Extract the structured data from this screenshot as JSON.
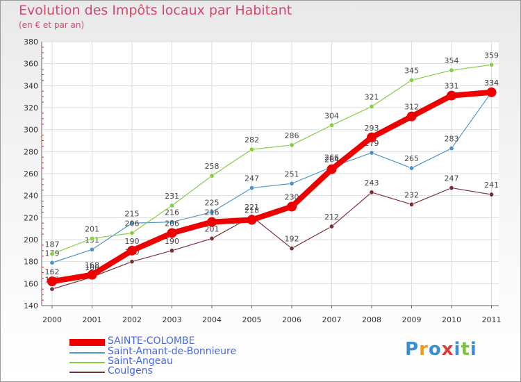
{
  "title": "Evolution des Impôts locaux par Habitant",
  "subtitle": "(en € et par an)",
  "logo": {
    "text": "Proxiti",
    "letters": [
      "P",
      "r",
      "o",
      "x",
      "i",
      "t",
      "i"
    ],
    "colors": [
      "#3a8fd0",
      "#f39c12",
      "#3a8fd0",
      "#e23b3b",
      "#3a8fd0",
      "#7cc242",
      "#3a8fd0"
    ]
  },
  "chart_data": {
    "type": "line",
    "title": "Evolution des Impôts locaux par Habitant",
    "subtitle": "(en € et par an)",
    "xlabel": "",
    "ylabel": "",
    "ylim": [
      140,
      380
    ],
    "yticks": [
      "140",
      "160",
      "180",
      "200",
      "220",
      "240",
      "260",
      "280",
      "300",
      "320",
      "340",
      "360",
      "380"
    ],
    "categories": [
      "2000",
      "2001",
      "2002",
      "2003",
      "2004",
      "2005",
      "2006",
      "2007",
      "2008",
      "2009",
      "2010",
      "2011"
    ],
    "series": [
      {
        "name": "Coulgens",
        "color": "#7a2f35",
        "labels": true,
        "values": [
          155,
          166,
          180,
          190,
          201,
          221,
          192,
          212,
          243,
          232,
          247,
          241
        ]
      },
      {
        "name": "Saint-Amant-de-Bonnieure",
        "color": "#4f93cc",
        "labels": true,
        "values": [
          179,
          191,
          215,
          216,
          225,
          247,
          251,
          266,
          279,
          265,
          283,
          334
        ]
      },
      {
        "name": "Saint-Angeau",
        "color": "#88cc44",
        "labels": true,
        "values": [
          187,
          201,
          206,
          231,
          258,
          282,
          286,
          304,
          321,
          345,
          354,
          359
        ]
      },
      {
        "name": "SAINTE-COLOMBE",
        "color": "#ee0000",
        "labels": true,
        "values": [
          162,
          168,
          190,
          206,
          216,
          218,
          230,
          264,
          293,
          312,
          331,
          334
        ]
      }
    ],
    "legend_order": [
      "SAINTE-COLOMBE",
      "Saint-Amant-de-Bonnieure",
      "Saint-Angeau",
      "Coulgens"
    ],
    "legend_position": "bottom-left"
  }
}
